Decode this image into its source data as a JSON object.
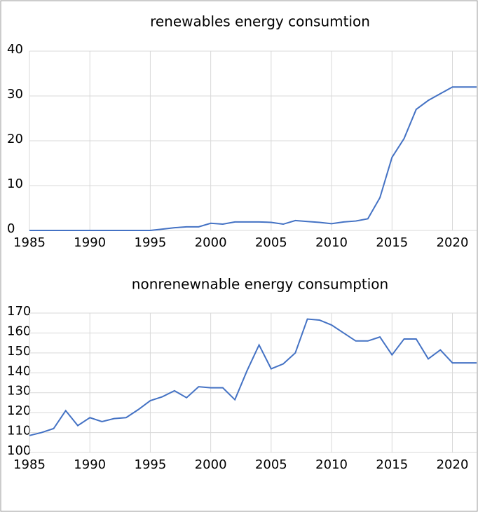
{
  "chart_data": [
    {
      "type": "line",
      "title": "renewables energy consumtion",
      "x": [
        1985,
        1986,
        1987,
        1988,
        1989,
        1990,
        1991,
        1992,
        1993,
        1994,
        1995,
        1996,
        1997,
        1998,
        1999,
        2000,
        2001,
        2002,
        2003,
        2004,
        2005,
        2006,
        2007,
        2008,
        2009,
        2010,
        2011,
        2012,
        2013,
        2014,
        2015,
        2016,
        2017,
        2018,
        2019,
        2020,
        2021,
        2022
      ],
      "series": [
        {
          "name": "renewables",
          "color": "#4472c4",
          "values": [
            0,
            0,
            0,
            0,
            0,
            0,
            0,
            0,
            0,
            0,
            0,
            0.3,
            0.6,
            0.8,
            0.8,
            1.6,
            1.4,
            1.9,
            1.9,
            1.9,
            1.8,
            1.4,
            2.2,
            2.0,
            1.8,
            1.5,
            1.9,
            2.1,
            2.6,
            7.3,
            16.3,
            20.5,
            27,
            29,
            30.5,
            32,
            32,
            32
          ]
        }
      ],
      "xlim": [
        1985,
        2022
      ],
      "xticks": [
        1985,
        1990,
        1995,
        2000,
        2005,
        2010,
        2015,
        2020
      ],
      "ylim": [
        0,
        40
      ],
      "yticks": [
        0,
        10,
        20,
        30,
        40
      ],
      "grid": true
    },
    {
      "type": "line",
      "title": "nonrenewnable energy consumption",
      "x": [
        1985,
        1986,
        1987,
        1988,
        1989,
        1990,
        1991,
        1992,
        1993,
        1994,
        1995,
        1996,
        1997,
        1998,
        1999,
        2000,
        2001,
        2002,
        2003,
        2004,
        2005,
        2006,
        2007,
        2008,
        2009,
        2010,
        2011,
        2012,
        2013,
        2014,
        2015,
        2016,
        2017,
        2018,
        2019,
        2020,
        2021,
        2022
      ],
      "series": [
        {
          "name": "nonrenewable",
          "color": "#4472c4",
          "values": [
            108.5,
            110,
            112,
            121,
            113.5,
            117.5,
            115.5,
            117,
            117.5,
            121.5,
            126,
            128,
            131,
            127.5,
            133,
            132.5,
            132.5,
            126.5,
            141,
            154,
            142,
            144.5,
            150,
            167,
            166.5,
            164,
            160,
            156,
            156,
            158,
            149,
            157,
            157,
            147,
            151.5,
            145,
            145,
            145
          ]
        }
      ],
      "xlim": [
        1985,
        2022
      ],
      "xticks": [
        1985,
        1990,
        1995,
        2000,
        2005,
        2010,
        2015,
        2020
      ],
      "ylim": [
        100,
        170
      ],
      "yticks": [
        100,
        110,
        120,
        130,
        140,
        150,
        160,
        170
      ],
      "grid": true
    }
  ]
}
